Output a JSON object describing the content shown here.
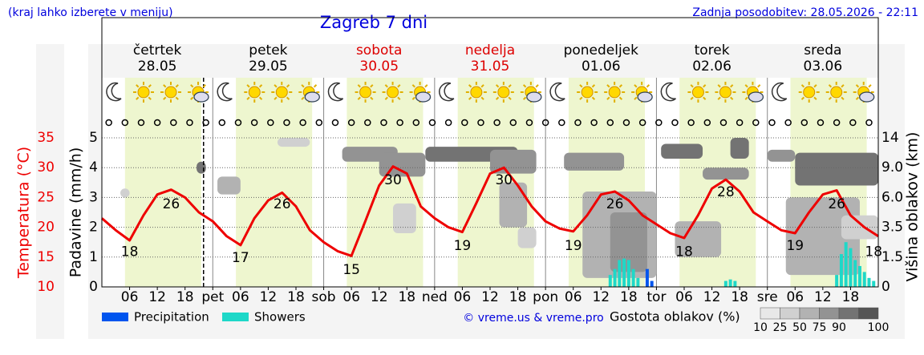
{
  "header": {
    "hint": "(kraj lahko izberete v meniju)",
    "title": "Zagreb 7 dni",
    "updated": "Zadnja posodobitev: 28.05.2026 - 22:11"
  },
  "chart_data": {
    "type": "meteogram",
    "days": [
      {
        "name": "četrtek",
        "date": "28.05",
        "weekend": false
      },
      {
        "name": "petek",
        "date": "29.05",
        "weekend": false
      },
      {
        "name": "sobota",
        "date": "30.05",
        "weekend": true
      },
      {
        "name": "nedelja",
        "date": "31.05",
        "weekend": true
      },
      {
        "name": "ponedeljek",
        "date": "01.06",
        "weekend": false
      },
      {
        "name": "torek",
        "date": "02.06",
        "weekend": false
      },
      {
        "name": "sreda",
        "date": "03.06",
        "weekend": false
      }
    ],
    "y_label": "Padavine (mm/h)",
    "y2_label": "Temperatura (°C)",
    "y3_label": "Višina oblakov (km)",
    "xlim": [
      0,
      168
    ],
    "xticks": [
      {
        "value": 6,
        "label": "06"
      },
      {
        "value": 12,
        "label": "12"
      },
      {
        "value": 18,
        "label": "18"
      },
      {
        "value": 24,
        "label": "pet"
      },
      {
        "value": 30,
        "label": "06"
      },
      {
        "value": 36,
        "label": "12"
      },
      {
        "value": 42,
        "label": "18"
      },
      {
        "value": 48,
        "label": "sob"
      },
      {
        "value": 54,
        "label": "06"
      },
      {
        "value": 60,
        "label": "12"
      },
      {
        "value": 66,
        "label": "18"
      },
      {
        "value": 72,
        "label": "ned"
      },
      {
        "value": 78,
        "label": "06"
      },
      {
        "value": 84,
        "label": "12"
      },
      {
        "value": 90,
        "label": "18"
      },
      {
        "value": 96,
        "label": "pon"
      },
      {
        "value": 102,
        "label": "06"
      },
      {
        "value": 108,
        "label": "12"
      },
      {
        "value": 114,
        "label": "18"
      },
      {
        "value": 120,
        "label": "tor"
      },
      {
        "value": 126,
        "label": "06"
      },
      {
        "value": 132,
        "label": "12"
      },
      {
        "value": 138,
        "label": "18"
      },
      {
        "value": 144,
        "label": "sre"
      },
      {
        "value": 150,
        "label": "06"
      },
      {
        "value": 156,
        "label": "12"
      },
      {
        "value": 162,
        "label": "18"
      }
    ],
    "ylim": [
      0,
      5
    ],
    "yticks": [
      0,
      1,
      2,
      3,
      4,
      5
    ],
    "y2lim": [
      10,
      35
    ],
    "y2ticks": [
      10,
      15,
      20,
      25,
      30,
      35
    ],
    "cloud_height_ticks": [
      "0",
      "1.5",
      "3.5",
      "6.0",
      "9.0",
      "14"
    ],
    "grid": true,
    "current_hour": 22,
    "temperature": {
      "color": "#ee0000",
      "x": [
        0,
        3,
        6,
        9,
        12,
        15,
        18,
        21,
        24,
        27,
        30,
        33,
        36,
        39,
        42,
        45,
        48,
        51,
        54,
        57,
        60,
        63,
        66,
        69,
        72,
        75,
        78,
        81,
        84,
        87,
        90,
        93,
        96,
        99,
        102,
        105,
        108,
        111,
        114,
        117,
        120,
        123,
        126,
        129,
        132,
        135,
        138,
        141,
        144,
        147,
        150,
        153,
        156,
        159,
        162,
        165,
        168
      ],
      "values": [
        21.5,
        19.5,
        17.8,
        22,
        25.5,
        26.3,
        25,
        22.5,
        21,
        18.5,
        17,
        21.5,
        24.5,
        25.8,
        23.5,
        19.5,
        17.5,
        16,
        15.2,
        21,
        27,
        30.2,
        29,
        23.5,
        21.5,
        20,
        19.2,
        24,
        29,
        30,
        27,
        23.5,
        21,
        19.8,
        19.3,
        22,
        25.5,
        26,
        24.5,
        22,
        20.5,
        19,
        18.2,
        22,
        26.5,
        28,
        26,
        22.5,
        21,
        19.5,
        19,
        22.5,
        25.5,
        26.2,
        22,
        20,
        18.5
      ]
    },
    "temperature_labels": [
      {
        "x": 6,
        "value": 18
      },
      {
        "x": 15,
        "value": 26
      },
      {
        "x": 30,
        "value": 17
      },
      {
        "x": 39,
        "value": 26
      },
      {
        "x": 54,
        "value": 15
      },
      {
        "x": 63,
        "value": 30
      },
      {
        "x": 78,
        "value": 19
      },
      {
        "x": 87,
        "value": 30
      },
      {
        "x": 102,
        "value": 19
      },
      {
        "x": 111,
        "value": 26
      },
      {
        "x": 126,
        "value": 18
      },
      {
        "x": 135,
        "value": 28
      },
      {
        "x": 150,
        "value": 19
      },
      {
        "x": 159,
        "value": 26
      },
      {
        "x": 167,
        "value": 18
      }
    ],
    "series": [
      {
        "name": "Precipitation",
        "color": "#0055ee",
        "x": [
          118,
          119
        ],
        "values": [
          0.6,
          0.2
        ]
      },
      {
        "name": "Showers",
        "color": "#1ed8c8",
        "x": [
          110,
          111,
          112,
          113,
          114,
          115,
          116,
          135,
          136,
          137,
          159,
          160,
          161,
          162,
          163,
          164,
          165,
          166,
          167
        ],
        "values": [
          0.4,
          0.6,
          0.9,
          0.95,
          0.9,
          0.6,
          0.3,
          0.2,
          0.25,
          0.2,
          0.4,
          1.1,
          1.5,
          1.3,
          0.9,
          0.7,
          0.5,
          0.3,
          0.2
        ]
      }
    ],
    "density_label": "Gostota oblakov (%)",
    "density_levels": [
      10,
      25,
      50,
      75,
      90,
      100
    ],
    "density_colors": [
      "#e8e8e8",
      "#d0d0d0",
      "#b2b2b2",
      "#939393",
      "#737373",
      "#555555"
    ],
    "clouds": [
      {
        "hours": [
          4,
          6
        ],
        "levels": [
          3.0,
          3.3
        ],
        "density": 25
      },
      {
        "hours": [
          20.5,
          22.5
        ],
        "levels": [
          3.8,
          4.2
        ],
        "density": 90
      },
      {
        "hours": [
          25,
          30
        ],
        "levels": [
          3.1,
          3.7
        ],
        "density": 50
      },
      {
        "hours": [
          38,
          45
        ],
        "levels": [
          4.7,
          5.0
        ],
        "density": 25
      },
      {
        "hours": [
          52,
          64
        ],
        "levels": [
          4.2,
          4.7
        ],
        "density": 75
      },
      {
        "hours": [
          60,
          70
        ],
        "levels": [
          3.7,
          4.5
        ],
        "density": 75
      },
      {
        "hours": [
          63,
          68
        ],
        "levels": [
          1.8,
          2.8
        ],
        "density": 25
      },
      {
        "hours": [
          70,
          90
        ],
        "levels": [
          4.2,
          4.7
        ],
        "density": 90
      },
      {
        "hours": [
          84,
          94
        ],
        "levels": [
          3.8,
          4.6
        ],
        "density": 75
      },
      {
        "hours": [
          86,
          92
        ],
        "levels": [
          2.0,
          3.5
        ],
        "density": 50
      },
      {
        "hours": [
          90,
          94
        ],
        "levels": [
          1.3,
          2.0
        ],
        "density": 25
      },
      {
        "hours": [
          100,
          113
        ],
        "levels": [
          3.9,
          4.5
        ],
        "density": 75
      },
      {
        "hours": [
          104,
          120
        ],
        "levels": [
          0.3,
          3.2
        ],
        "density": 50
      },
      {
        "hours": [
          110,
          118
        ],
        "levels": [
          0.5,
          2.5
        ],
        "density": 75
      },
      {
        "hours": [
          121,
          130
        ],
        "levels": [
          4.3,
          4.8
        ],
        "density": 90
      },
      {
        "hours": [
          130,
          140
        ],
        "levels": [
          3.6,
          4.0
        ],
        "density": 75
      },
      {
        "hours": [
          136,
          140
        ],
        "levels": [
          4.3,
          5.0
        ],
        "density": 90
      },
      {
        "hours": [
          124,
          134
        ],
        "levels": [
          1.0,
          2.2
        ],
        "density": 50
      },
      {
        "hours": [
          144,
          150
        ],
        "levels": [
          4.2,
          4.6
        ],
        "density": 75
      },
      {
        "hours": [
          150,
          168
        ],
        "levels": [
          3.4,
          4.5
        ],
        "density": 90
      },
      {
        "hours": [
          148,
          164
        ],
        "levels": [
          0.4,
          3.0
        ],
        "density": 50
      },
      {
        "hours": [
          160,
          168
        ],
        "levels": [
          1.6,
          2.4
        ],
        "density": 25
      }
    ],
    "copyright": "© vreme.us & vreme.pro"
  }
}
